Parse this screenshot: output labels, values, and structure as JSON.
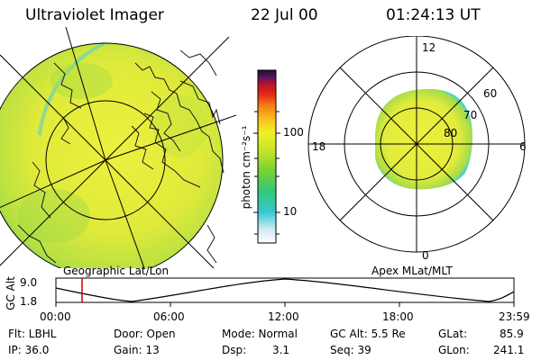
{
  "header": {
    "title": "Ultraviolet Imager",
    "date": "22 Jul 00",
    "time": "01:24:13 UT"
  },
  "left_panel": {
    "caption": "Geographic Lat/Lon"
  },
  "right_panel": {
    "caption": "Apex MLat/MLT",
    "mlt_labels": {
      "top": "12",
      "left": "18",
      "right": "6",
      "bottom": "0"
    },
    "lat_labels": [
      "60",
      "70",
      "80"
    ]
  },
  "colorbar": {
    "unit_label": "photon cm⁻²s⁻¹",
    "tick_100": "100",
    "tick_10": "10",
    "scale": "log",
    "colors": [
      "#ffffff",
      "#cfe9f2",
      "#36c8d2",
      "#32c878",
      "#78d232",
      "#c8e628",
      "#f0f028",
      "#fabe1e",
      "#f57814",
      "#e62814",
      "#b41428",
      "#5a1464",
      "#14142d"
    ]
  },
  "timeline": {
    "ylabel": "GC Alt",
    "y_top": "9.0",
    "y_bottom": "1.8",
    "x_ticks": [
      "00:00",
      "06:00",
      "12:00",
      "18:00",
      "23:59"
    ],
    "marker_color": "#cc0000"
  },
  "info": {
    "flt": "Flt: LBHL",
    "ip": "IP: 36.0",
    "door": "Door: Open",
    "gain": "Gain: 13",
    "mode": "Mode: Normal",
    "dsp_label": "Dsp:",
    "dsp_value": "3.1",
    "gc_alt": "GC Alt: 5.5 Re",
    "seq": "Seq: 39",
    "glat": "GLat:",
    "glat_value": "85.9",
    "glon": "GLon:",
    "glon_value": "241.1"
  },
  "colors": {
    "aurora_yellow": "#e8ec3c",
    "aurora_green": "#9ed84a",
    "aurora_edge": "#4ad2c8",
    "grid": "#000000",
    "coast": "#1a1a1a"
  }
}
